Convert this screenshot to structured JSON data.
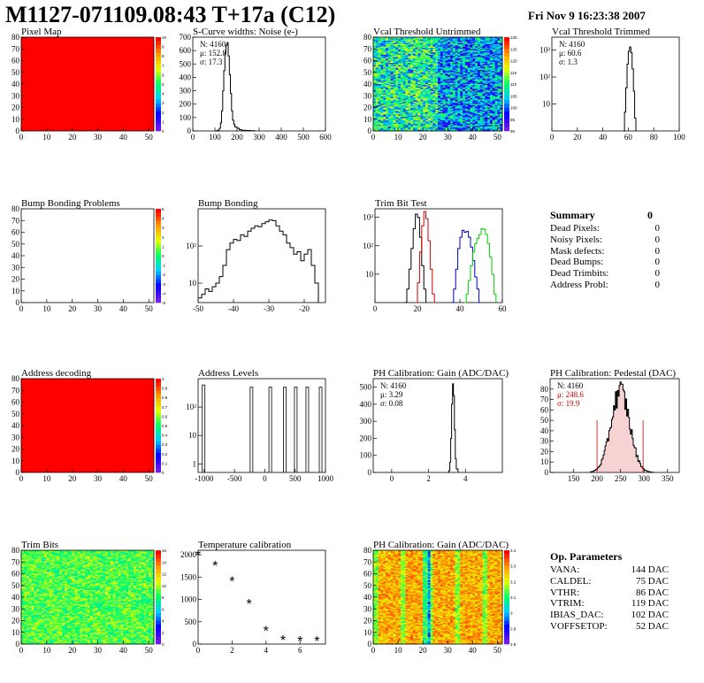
{
  "header": {
    "title": "M1127-071109.08:43 T+17a (C12)",
    "date": "Fri Nov  9 16:23:38 2007"
  },
  "colors": {
    "map_full": "#ff0000",
    "line": "#000000",
    "trim_red": "#cc0000",
    "trim_blue": "#0000cc",
    "trim_green": "#00cc00",
    "pedestal_fit": "#cc0000"
  },
  "summary": {
    "title": "Summary",
    "title_value": "0",
    "items": [
      {
        "label": "Dead Pixels:",
        "value": "0"
      },
      {
        "label": "Noisy Pixels:",
        "value": "0"
      },
      {
        "label": "Mask defects:",
        "value": "0"
      },
      {
        "label": "Dead Bumps:",
        "value": "0"
      },
      {
        "label": "Dead Trimbits:",
        "value": "0"
      },
      {
        "label": "Address Probl:",
        "value": "0"
      }
    ]
  },
  "op_parameters": {
    "title": "Op. Parameters",
    "items": [
      {
        "label": "VANA:",
        "value": "144 DAC"
      },
      {
        "label": "CALDEL:",
        "value": "75 DAC"
      },
      {
        "label": "VTHR:",
        "value": "86 DAC"
      },
      {
        "label": "VTRIM:",
        "value": "119 DAC"
      },
      {
        "label": "IBIAS_DAC:",
        "value": "102 DAC"
      },
      {
        "label": "VOFFSETOP:",
        "value": "52 DAC"
      }
    ]
  },
  "chart_data": [
    {
      "id": "pixel-map",
      "type": "heatmap",
      "title": "Pixel Map",
      "fill": "uniform",
      "value": 10,
      "xlim": [
        0,
        52
      ],
      "ylim": [
        0,
        80
      ],
      "xticks": [
        0,
        10,
        20,
        30,
        40,
        50
      ],
      "yticks": [
        0,
        10,
        20,
        30,
        40,
        50,
        60,
        70,
        80
      ],
      "zticks": [
        0,
        1,
        2,
        3,
        4,
        5,
        6,
        7,
        8,
        9,
        10
      ]
    },
    {
      "id": "scurve-noise",
      "type": "line",
      "title": "S-Curve widths: Noise (e-)",
      "xlim": [
        0,
        600
      ],
      "ylim": [
        0,
        700
      ],
      "xticks": [
        0,
        100,
        200,
        300,
        400,
        500,
        600
      ],
      "yticks": [
        0,
        100,
        200,
        300,
        400,
        500,
        600,
        700
      ],
      "stats": {
        "N": "4160",
        "mu": "152.8",
        "sigma": "17.3"
      },
      "x": [
        100,
        110,
        120,
        125,
        130,
        135,
        140,
        145,
        150,
        155,
        160,
        165,
        170,
        175,
        180,
        185,
        190,
        200,
        210,
        220,
        240,
        260,
        280
      ],
      "y": [
        0,
        5,
        20,
        60,
        150,
        300,
        450,
        580,
        640,
        660,
        560,
        420,
        280,
        150,
        80,
        50,
        30,
        20,
        10,
        5,
        3,
        2,
        0
      ]
    },
    {
      "id": "vcal-untrimmed",
      "type": "heatmap",
      "title": "Vcal Threshold Untrimmed",
      "fill": "noise-map",
      "xlim": [
        0,
        52
      ],
      "ylim": [
        0,
        80
      ],
      "xticks": [
        0,
        10,
        20,
        30,
        40,
        50
      ],
      "yticks": [
        0,
        10,
        20,
        30,
        40,
        50,
        60,
        70,
        80
      ],
      "zticks": [
        90,
        95,
        100,
        105,
        110,
        115,
        120,
        125,
        130
      ]
    },
    {
      "id": "vcal-trimmed",
      "type": "line",
      "title": "Vcal Threshold Trimmed",
      "log_y": true,
      "xlim": [
        0,
        100
      ],
      "ylim": [
        1,
        3000
      ],
      "xticks": [
        0,
        20,
        40,
        60,
        80,
        100
      ],
      "ytick_labels": [
        "10",
        "10²",
        "10³"
      ],
      "stats": {
        "N": "4160",
        "mu": "60.6",
        "sigma": "1.3"
      },
      "x": [
        56,
        57,
        58,
        59,
        60,
        61,
        62,
        63,
        64,
        65,
        66
      ],
      "y": [
        1,
        5,
        40,
        300,
        900,
        1300,
        800,
        200,
        30,
        3,
        1
      ]
    },
    {
      "id": "bump-problems",
      "type": "heatmap",
      "title": "Bump Bonding Problems",
      "fill": "empty",
      "xlim": [
        0,
        52
      ],
      "ylim": [
        0,
        80
      ],
      "xticks": [
        0,
        10,
        20,
        30,
        40,
        50
      ],
      "yticks": [
        0,
        10,
        20,
        30,
        40,
        50,
        60,
        70,
        80
      ],
      "zticks": [
        -5,
        -4,
        -3,
        -2,
        -1,
        0,
        1,
        2,
        3,
        4,
        5
      ]
    },
    {
      "id": "bump-bonding",
      "type": "line",
      "title": "Bump Bonding",
      "log_y": true,
      "xlim": [
        -50,
        -14
      ],
      "ylim": [
        3,
        1000
      ],
      "xticks": [
        -50,
        -40,
        -30,
        -20
      ],
      "ytick_labels": [
        "10",
        "10²"
      ],
      "x": [
        -50,
        -49,
        -48,
        -47,
        -46,
        -45,
        -44,
        -43,
        -42,
        -41,
        -40,
        -39,
        -38,
        -37,
        -36,
        -35,
        -34,
        -33,
        -32,
        -31,
        -30,
        -29,
        -28,
        -27,
        -26,
        -25,
        -24,
        -23,
        -22,
        -21,
        -20,
        -19,
        -18,
        -17,
        -16
      ],
      "y": [
        4,
        5,
        7,
        6,
        8,
        10,
        15,
        30,
        80,
        120,
        150,
        140,
        200,
        180,
        250,
        300,
        350,
        330,
        400,
        450,
        500,
        480,
        350,
        250,
        200,
        120,
        90,
        60,
        70,
        40,
        60,
        80,
        30,
        10,
        3
      ]
    },
    {
      "id": "trim-bit-test",
      "type": "line",
      "title": "Trim Bit Test",
      "log_y": true,
      "xlim": [
        0,
        60
      ],
      "ylim": [
        1,
        2000
      ],
      "xticks": [
        0,
        20,
        40,
        60
      ],
      "ytick_labels": [
        "10",
        "10²",
        "10³"
      ],
      "series": [
        {
          "color": "#000000",
          "x": [
            14,
            15,
            16,
            17,
            18,
            19,
            20,
            21,
            22,
            23,
            24
          ],
          "y": [
            1,
            3,
            15,
            80,
            400,
            1300,
            1000,
            200,
            20,
            3,
            1
          ]
        },
        {
          "color": "#cc0000",
          "x": [
            19,
            20,
            21,
            22,
            23,
            24,
            25,
            26,
            27,
            28
          ],
          "y": [
            1,
            5,
            60,
            500,
            1600,
            900,
            150,
            15,
            2,
            1
          ]
        },
        {
          "color": "#0000cc",
          "x": [
            36,
            37,
            38,
            39,
            40,
            41,
            42,
            43,
            44,
            45,
            46,
            47,
            48,
            49,
            50
          ],
          "y": [
            1,
            3,
            15,
            80,
            200,
            350,
            300,
            320,
            200,
            90,
            30,
            8,
            3,
            1,
            1
          ]
        },
        {
          "color": "#00cc00",
          "x": [
            42,
            43,
            44,
            45,
            46,
            47,
            48,
            49,
            50,
            51,
            52,
            53,
            54,
            55,
            56,
            57
          ],
          "y": [
            1,
            2,
            6,
            20,
            60,
            120,
            180,
            250,
            400,
            380,
            250,
            120,
            40,
            10,
            2,
            1
          ]
        }
      ]
    },
    {
      "id": "address-decoding",
      "type": "heatmap",
      "title": "Address decoding",
      "fill": "uniform",
      "value": 1,
      "xlim": [
        0,
        52
      ],
      "ylim": [
        0,
        80
      ],
      "xticks": [
        0,
        10,
        20,
        30,
        40,
        50
      ],
      "yticks": [
        0,
        10,
        20,
        30,
        40,
        50,
        60,
        70,
        80
      ],
      "zticks": [
        0,
        0.1,
        0.2,
        0.3,
        0.4,
        0.5,
        0.6,
        0.7,
        0.8,
        0.9,
        1
      ]
    },
    {
      "id": "address-levels",
      "type": "bar",
      "title": "Address Levels",
      "log_y": true,
      "xlim": [
        -1100,
        1000
      ],
      "ylim": [
        0.5,
        1000
      ],
      "xticks": [
        -1000,
        -500,
        0,
        500,
        1000
      ],
      "ytick_labels": [
        "1",
        "10",
        "10²"
      ],
      "peaks": [
        -1010,
        -220,
        90,
        330,
        510,
        700,
        920
      ],
      "values": [
        600,
        500,
        500,
        500,
        500,
        500,
        500
      ]
    },
    {
      "id": "ph-gain",
      "type": "line",
      "title": "PH Calibration: Gain (ADC/DAC)",
      "xlim": [
        -1,
        6
      ],
      "ylim": [
        0,
        550
      ],
      "xticks": [
        0,
        2,
        4
      ],
      "yticks": [
        0,
        100,
        200,
        300,
        400,
        500
      ],
      "stats": {
        "N": "4160",
        "mu": "3.29",
        "sigma": "0.08"
      },
      "x": [
        3.0,
        3.1,
        3.15,
        3.2,
        3.25,
        3.3,
        3.35,
        3.4,
        3.45,
        3.5,
        3.6
      ],
      "y": [
        0,
        10,
        60,
        200,
        400,
        520,
        450,
        250,
        80,
        20,
        0
      ]
    },
    {
      "id": "ph-pedestal",
      "type": "bar",
      "title": "PH Calibration: Pedestal (DAC)",
      "xlim": [
        100,
        375
      ],
      "ylim": [
        0,
        90
      ],
      "xticks": [
        150,
        200,
        250,
        300,
        350
      ],
      "yticks": [
        0,
        10,
        20,
        30,
        40,
        50,
        60,
        70,
        80
      ],
      "stats": {
        "N": "4160",
        "mu": "248.6",
        "sigma": "19.9"
      },
      "gauss": {
        "mean": 248.6,
        "sigma": 19.9,
        "amp": 78
      },
      "fit_range": [
        200,
        298
      ]
    },
    {
      "id": "trim-bits",
      "type": "heatmap",
      "title": "Trim Bits",
      "fill": "trim-map",
      "xlim": [
        0,
        52
      ],
      "ylim": [
        0,
        80
      ],
      "xticks": [
        0,
        10,
        20,
        30,
        40,
        50
      ],
      "yticks": [
        0,
        10,
        20,
        30,
        40,
        50,
        60,
        70,
        80
      ],
      "zticks": [
        0,
        2,
        4,
        6,
        8,
        10,
        12,
        14,
        16
      ]
    },
    {
      "id": "temperature",
      "type": "scatter",
      "title": "Temperature calibration",
      "xlim": [
        0,
        7.5
      ],
      "ylim": [
        0,
        2100
      ],
      "xticks": [
        0,
        2,
        4,
        6
      ],
      "yticks": [
        0,
        500,
        1000,
        1500,
        2000
      ],
      "x": [
        0,
        1,
        2,
        3,
        4,
        5,
        6,
        7
      ],
      "y": [
        2000,
        1760,
        1420,
        910,
        310,
        95,
        80,
        80
      ]
    },
    {
      "id": "ph-gain-map",
      "type": "heatmap",
      "title": "PH Calibration: Gain (ADC/DAC)",
      "fill": "gain-map",
      "xlim": [
        0,
        52
      ],
      "ylim": [
        0,
        80
      ],
      "xticks": [
        0,
        10,
        20,
        30,
        40,
        50
      ],
      "yticks": [
        0,
        10,
        20,
        30,
        40,
        50,
        60,
        70,
        80
      ],
      "zticks": [
        2.8,
        2.9,
        3,
        3.1,
        3.2,
        3.3,
        3.4
      ]
    }
  ]
}
